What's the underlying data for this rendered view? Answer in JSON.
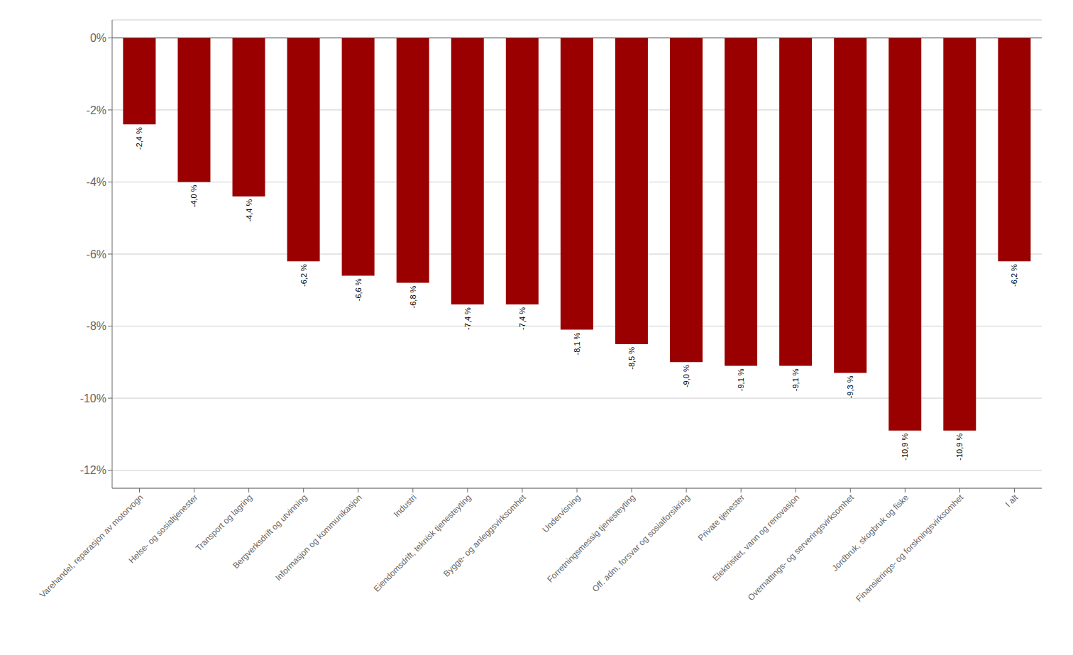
{
  "chart_data": {
    "type": "bar",
    "categories": [
      "Varehandel, reparasjon av motorvogn",
      "Helse- og sosialtjenester",
      "Transport og lagring",
      "Bergverksdrift og utvinning",
      "Informasjon og kommunikasjon",
      "Industri",
      "Eiendomsdrift, teknisk tjenesteyting",
      "Bygge- og anleggsvirksomhet",
      "Undervisning",
      "Forretningsmessig tjenesteyting",
      "Off. adm, forsvar og sosialforsikring",
      "Private tjenester",
      "Elektrisitet, vann og renovasjon",
      "Overnattings- og serveringsvirksomhet",
      "Jordbruk, skogbruk og fiske",
      "Finansierings- og forskningsvirksomhet",
      "I alt"
    ],
    "values": [
      -2.4,
      -4.0,
      -4.4,
      -6.2,
      -6.6,
      -6.8,
      -7.4,
      -7.4,
      -8.1,
      -8.5,
      -9.0,
      -9.1,
      -9.1,
      -9.3,
      -10.9,
      -10.9,
      -6.2
    ],
    "value_labels": [
      "-2,4 %",
      "-4,0 %",
      "-4,4 %",
      "-6,2 %",
      "-6,6 %",
      "-6,8 %",
      "-7,4 %",
      "-7,4 %",
      "-8,1 %",
      "-8,5 %",
      "-9,0 %",
      "-9,1 %",
      "-9,1 %",
      "-9,3 %",
      "-10,9 %",
      "-10,9 %",
      "-6,2 %"
    ],
    "data_labels": true,
    "color": "#9b0000",
    "ylim": [
      -12.5,
      0.5
    ],
    "yticks": [
      {
        "value": 0,
        "label": "0%"
      },
      {
        "value": -2,
        "label": "-2%"
      },
      {
        "value": -4,
        "label": "-4%"
      },
      {
        "value": -6,
        "label": "-6%"
      },
      {
        "value": -8,
        "label": "-8%"
      },
      {
        "value": -10,
        "label": "-10%"
      },
      {
        "value": -12,
        "label": "-12%"
      }
    ],
    "grid": true
  }
}
